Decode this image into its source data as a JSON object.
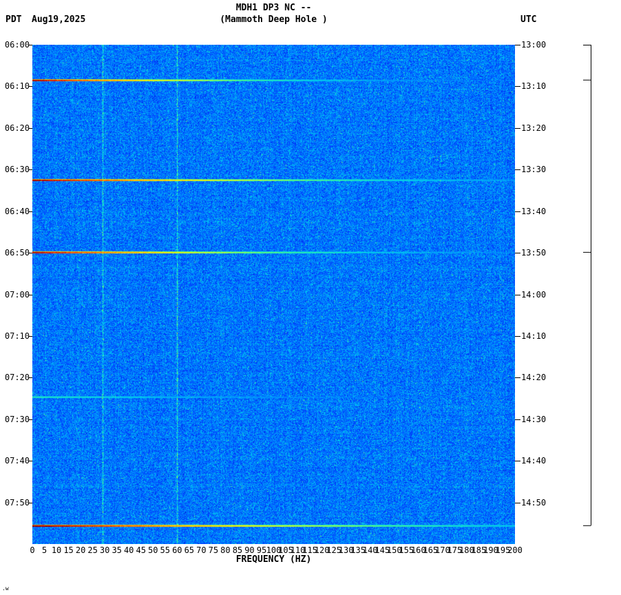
{
  "header": {
    "title": "MDH1 DP3 NC --",
    "subtitle": "(Mammoth Deep Hole )",
    "tz_left": "PDT",
    "date": "Aug19,2025",
    "tz_right": "UTC"
  },
  "footer": {
    "xlabel": "FREQUENCY (HZ)",
    "corner_mark": ".w"
  },
  "chart_data": {
    "type": "heatmap",
    "subtype": "seismic-spectrogram",
    "station": "MDH1 DP3 NC --",
    "station_name": "(Mammoth Deep Hole )",
    "xlabel": "FREQUENCY (HZ)",
    "x_range_hz": [
      0,
      200
    ],
    "x_ticks": [
      0,
      5,
      10,
      15,
      20,
      25,
      30,
      35,
      40,
      45,
      50,
      55,
      60,
      65,
      70,
      75,
      80,
      85,
      90,
      95,
      100,
      105,
      110,
      115,
      120,
      125,
      130,
      135,
      140,
      145,
      150,
      155,
      160,
      165,
      170,
      175,
      180,
      185,
      190,
      195,
      200
    ],
    "time_axis": {
      "left_timezone": "PDT",
      "right_timezone": "UTC",
      "date": "Aug19,2025",
      "start_pdt": "06:00",
      "end_pdt": "08:00",
      "start_utc": "13:00",
      "end_utc": "15:00",
      "minutes_total": 120,
      "label_interval_min": 10
    },
    "left_time_labels": [
      "06:00",
      "06:10",
      "06:20",
      "06:30",
      "06:40",
      "06:50",
      "07:00",
      "07:10",
      "07:20",
      "07:30",
      "07:40",
      "07:50"
    ],
    "right_time_labels": [
      "13:00",
      "13:10",
      "13:20",
      "13:30",
      "13:40",
      "13:50",
      "14:00",
      "14:10",
      "14:20",
      "14:30",
      "14:40",
      "14:50"
    ],
    "background": {
      "description": "low-amplitude broadband blue noise",
      "base_color": "#1e90ff"
    },
    "vertical_lines": [
      {
        "hz": 29,
        "boost": 0.16,
        "description": "persistent narrowband noise line"
      },
      {
        "hz": 60,
        "boost": 0.2,
        "description": "mains hum line"
      }
    ],
    "events": [
      {
        "time_pdt": "06:08",
        "time_utc": "13:08",
        "minutes": 8.4,
        "intensity": 1.0,
        "fade": 0.0035
      },
      {
        "time_pdt": "06:32",
        "time_utc": "13:32",
        "minutes": 32.4,
        "intensity": 1.0,
        "fade": 0.0026
      },
      {
        "time_pdt": "06:50",
        "time_utc": "13:50",
        "minutes": 49.8,
        "intensity": 1.0,
        "fade": 0.003
      },
      {
        "time_pdt": "07:24",
        "time_utc": "14:24",
        "minutes": 84.5,
        "intensity": 0.66,
        "fade": 0.002
      },
      {
        "time_pdt": "07:56",
        "time_utc": "14:56",
        "minutes": 115.5,
        "intensity": 1.02,
        "fade": 0.0022
      }
    ],
    "marker_bar": {
      "ticks_min": [
        0,
        8.4,
        49.8,
        115.5
      ]
    },
    "colormap": [
      "#00008c",
      "#003cff",
      "#008cff",
      "#00d2eb",
      "#3cf596",
      "#b4ff3c",
      "#ffe600",
      "#ff8200",
      "#e11400",
      "#7d0000"
    ]
  }
}
